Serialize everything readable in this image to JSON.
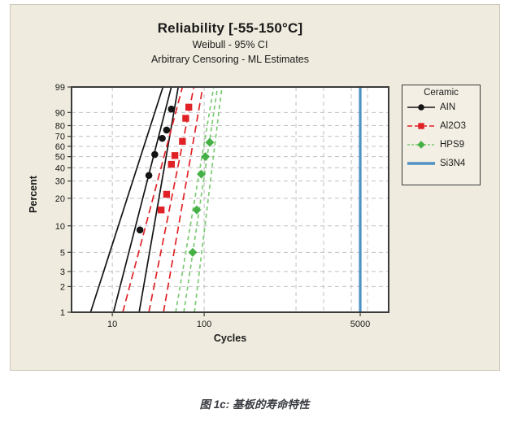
{
  "caption": {
    "text": "图 1c:  基板的寿命特性"
  },
  "chart_data": {
    "type": "line",
    "plot_kind": "weibull-probability-plot",
    "title": "Reliability [-55-150°C]",
    "subtitle": "Weibull - 95% CI",
    "subtitle2": "Arbitrary Censoring - ML Estimates",
    "xlabel": "Cycles",
    "ylabel": "Percent",
    "x_scale": "log10",
    "y_scale": "weibull-percent",
    "x_range": [
      3.6,
      10200
    ],
    "y_range": [
      1,
      99
    ],
    "x_ticks": [
      10,
      100,
      5000
    ],
    "y_ticks": [
      99,
      90,
      80,
      70,
      60,
      50,
      40,
      30,
      20,
      10,
      5,
      3,
      2,
      1
    ],
    "x_gridlines": [
      10,
      100,
      1000,
      2000,
      4000,
      6000
    ],
    "grid": true,
    "legend": {
      "title": "Ceramic",
      "position": "right"
    },
    "colors": {
      "panel_background": "#EFEBDE",
      "plot_background": "#FFFFFF",
      "gridline": "#C0C0C0",
      "ain": "#141414",
      "al2o3": "#E02227",
      "hps9": "#45B045",
      "si3n4": "#4E92C3"
    },
    "series": [
      {
        "name": "AIN",
        "color": "#141414",
        "marker": "circle",
        "line_style": "solid",
        "points": [
          {
            "cycles": 20,
            "percent": 9
          },
          {
            "cycles": 25,
            "percent": 34
          },
          {
            "cycles": 29,
            "percent": 52
          },
          {
            "cycles": 35,
            "percent": 68
          },
          {
            "cycles": 39,
            "percent": 76
          },
          {
            "cycles": 44,
            "percent": 92
          }
        ],
        "fit_line": {
          "p1_cycles": 10.3,
          "p99_cycles": 43.9
        },
        "ci_lower": {
          "p1_cycles": 5.8,
          "p99_cycles": 35.6
        },
        "ci_upper": {
          "p1_cycles": 19.6,
          "p99_cycles": 52.2
        }
      },
      {
        "name": "Al2O3",
        "color": "#E02227",
        "marker": "square",
        "line_style": "dashed-long",
        "points": [
          {
            "cycles": 34,
            "percent": 15
          },
          {
            "cycles": 39,
            "percent": 22
          },
          {
            "cycles": 44,
            "percent": 43
          },
          {
            "cycles": 48,
            "percent": 51
          },
          {
            "cycles": 58,
            "percent": 65
          },
          {
            "cycles": 63,
            "percent": 86
          },
          {
            "cycles": 68,
            "percent": 93
          }
        ],
        "fit_line": {
          "p1_cycles": 25.0,
          "p99_cycles": 77.2
        },
        "ci_lower": {
          "p1_cycles": 13.0,
          "p99_cycles": 58.0
        },
        "ci_upper": {
          "p1_cycles": 36.1,
          "p99_cycles": 96.6
        }
      },
      {
        "name": "HPS9",
        "color": "#45B045",
        "line_color": "#7CCB74",
        "marker": "diamond",
        "line_style": "dashed",
        "points": [
          {
            "cycles": 75,
            "percent": 5
          },
          {
            "cycles": 83,
            "percent": 15
          },
          {
            "cycles": 93,
            "percent": 35
          },
          {
            "cycles": 103,
            "percent": 50
          },
          {
            "cycles": 115,
            "percent": 64
          }
        ],
        "fit_line": {
          "p1_cycles": 60.1,
          "p99_cycles": 140.0
        },
        "ci_lower": {
          "p1_cycles": 49.0,
          "p99_cycles": 127.0
        },
        "ci_upper": {
          "p1_cycles": 78.3,
          "p99_cycles": 156.0
        }
      },
      {
        "name": "Si3N4",
        "color": "#4E92C3",
        "marker": "none",
        "line_style": "solid",
        "type": "vline",
        "cycles": 5000
      }
    ]
  }
}
